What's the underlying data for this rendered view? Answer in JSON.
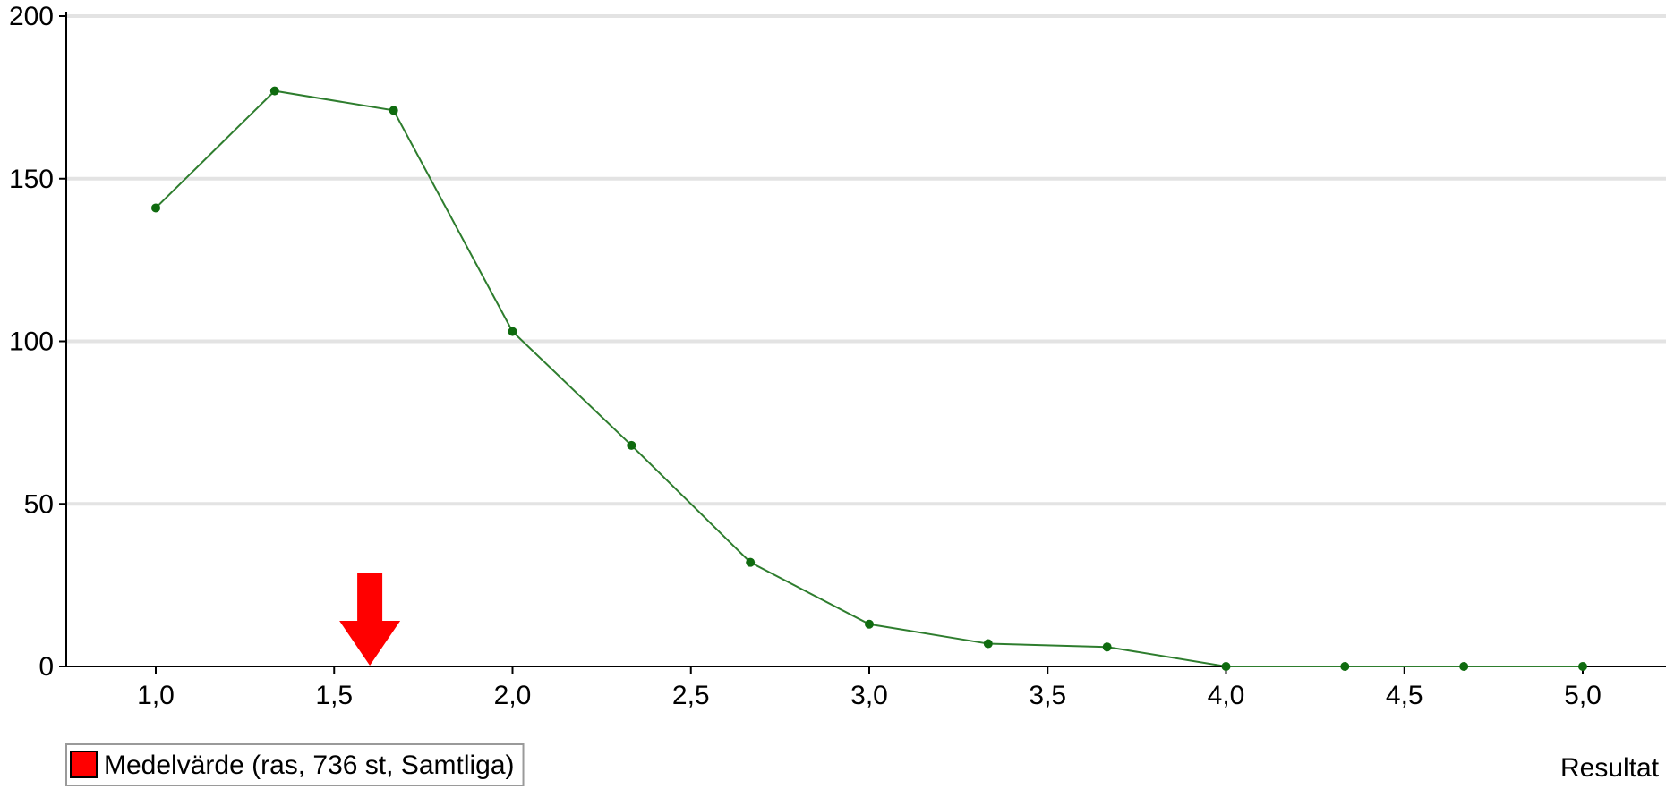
{
  "chart_data": {
    "type": "line",
    "x": [
      1.0,
      1.3333,
      1.6667,
      2.0,
      2.3333,
      2.6667,
      3.0,
      3.3333,
      3.6667,
      4.0,
      4.3333,
      4.6667,
      5.0
    ],
    "series": [
      {
        "values": [
          141,
          177,
          171,
          103,
          68,
          32,
          13,
          7,
          6,
          0,
          0,
          0,
          0
        ],
        "color": "#2e7d2e"
      }
    ],
    "xlim": [
      0.75,
      5.25
    ],
    "ylim": [
      0,
      200
    ],
    "x_ticks": [
      1.0,
      1.5,
      2.0,
      2.5,
      3.0,
      3.5,
      4.0,
      4.5,
      5.0
    ],
    "x_tick_labels": [
      "1,0",
      "1,5",
      "2,0",
      "2,5",
      "3,0",
      "3,5",
      "4,0",
      "4,5",
      "5,0"
    ],
    "y_ticks": [
      0,
      50,
      100,
      150,
      200
    ],
    "y_tick_labels": [
      "0",
      "50",
      "100",
      "150",
      "200"
    ],
    "xlabel": "Resultat",
    "ylabel": "",
    "grid": "horizontal",
    "marker": {
      "x": 1.6,
      "color": "#ff0000",
      "shape": "down-arrow"
    },
    "legend": {
      "position": "bottom-left",
      "entries": [
        {
          "label": "Medelvärde (ras, 736 st, Samtliga)",
          "color": "#ff0000"
        }
      ]
    }
  }
}
